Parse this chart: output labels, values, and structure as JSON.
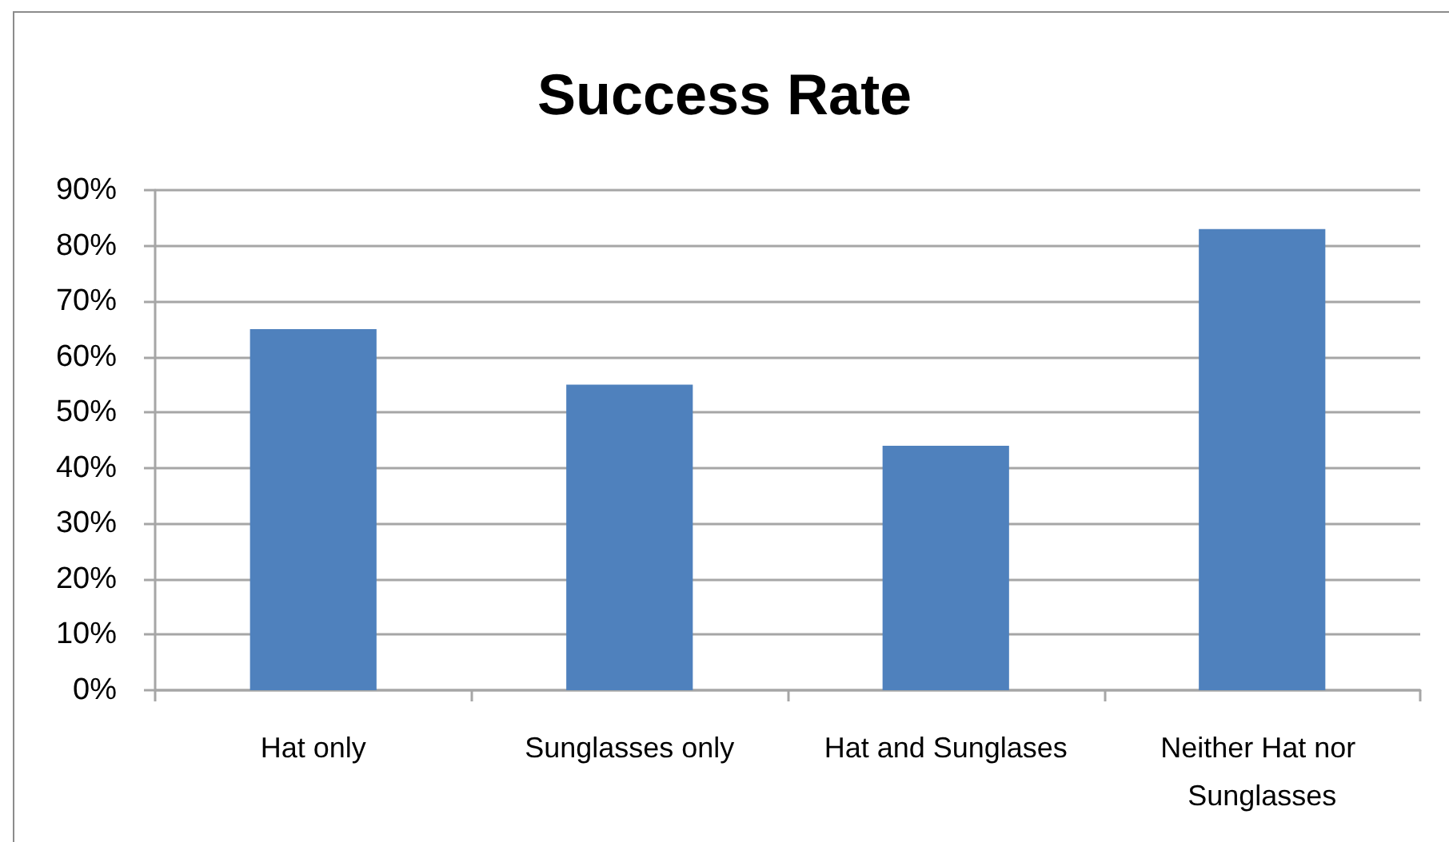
{
  "chart_data": {
    "type": "bar",
    "title": "Success Rate",
    "categories": [
      "Hat only",
      "Sunglasses only",
      "Hat and Sunglases",
      "Neither Hat nor Sunglasses"
    ],
    "series": [
      {
        "color": "#4f81bd",
        "values": [
          65,
          55,
          44,
          83
        ]
      }
    ],
    "ylim": [
      0,
      90
    ],
    "yticks": [
      {
        "value": 0,
        "label": "0%"
      },
      {
        "value": 10,
        "label": "10%"
      },
      {
        "value": 20,
        "label": "20%"
      },
      {
        "value": 30,
        "label": "30%"
      },
      {
        "value": 40,
        "label": "40%"
      },
      {
        "value": 50,
        "label": "50%"
      },
      {
        "value": 60,
        "label": "60%"
      },
      {
        "value": 70,
        "label": "70%"
      },
      {
        "value": 80,
        "label": "80%"
      },
      {
        "value": 90,
        "label": "90%"
      }
    ],
    "grid": "y"
  }
}
